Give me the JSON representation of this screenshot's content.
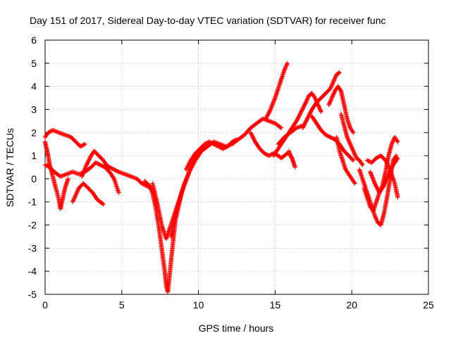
{
  "chart_data": {
    "type": "scatter",
    "title": "Day 151 of 2017, Sidereal Day-to-day VTEC variation (SDTVAR) for receiver func",
    "xlabel": "GPS time / hours",
    "ylabel": "SDTVAR / TECUs",
    "xlim": [
      0,
      25
    ],
    "ylim": [
      -5,
      6
    ],
    "x_ticks": [
      0,
      5,
      10,
      15,
      20,
      25
    ],
    "y_ticks": [
      -5,
      -4,
      -3,
      -2,
      -1,
      0,
      1,
      2,
      3,
      4,
      5,
      6
    ],
    "grid": true,
    "legend": "none",
    "marker": "plus",
    "color": "#ff0000",
    "series": [
      {
        "x": [
          0,
          0.2,
          0.5,
          0.9,
          1.3,
          1.7,
          2.0,
          2.3,
          2.6
        ],
        "y": [
          1.8,
          2.0,
          2.1,
          2.0,
          1.9,
          1.8,
          1.6,
          1.4,
          1.5
        ]
      },
      {
        "x": [
          0,
          0.3,
          0.6,
          1.0,
          1.4,
          1.8,
          2.2,
          2.6,
          3.0,
          3.3,
          3.6,
          3.9,
          4.2,
          4.5,
          4.8
        ],
        "y": [
          0.6,
          0.5,
          0.3,
          0.1,
          0.2,
          0.3,
          0.2,
          0.3,
          0.5,
          0.7,
          0.6,
          0.5,
          0.3,
          0.0,
          -0.6
        ]
      },
      {
        "x": [
          0,
          0.1,
          0.2,
          0.3,
          0.5,
          0.7,
          0.9,
          1.0,
          1.1,
          1.3,
          1.5
        ],
        "y": [
          1.6,
          1.3,
          1.0,
          0.6,
          0.1,
          -0.4,
          -0.9,
          -1.3,
          -1.0,
          -0.4,
          0.0
        ]
      },
      {
        "x": [
          1.8,
          2.0,
          2.2,
          2.5,
          2.8,
          3.1,
          3.4,
          3.6,
          3.8
        ],
        "y": [
          -1.0,
          -0.7,
          -0.4,
          -0.2,
          -0.4,
          -0.6,
          -0.9,
          -1.0,
          -1.1
        ]
      },
      {
        "x": [
          2.4,
          2.7,
          3.0,
          3.2,
          3.5,
          3.8,
          4.0,
          4.2,
          4.5,
          4.8,
          5.2,
          5.6,
          6.0,
          6.3,
          6.6,
          6.9
        ],
        "y": [
          0.1,
          0.6,
          1.0,
          1.2,
          1.0,
          0.8,
          0.6,
          0.5,
          0.4,
          0.3,
          0.2,
          0.1,
          0.0,
          -0.2,
          -0.3,
          -0.4
        ]
      },
      {
        "x": [
          6.5,
          6.8,
          7.0,
          7.2,
          7.4,
          7.6,
          7.8,
          7.9,
          8.0,
          8.1,
          8.3,
          8.5,
          8.7,
          8.9
        ],
        "y": [
          -0.1,
          -0.3,
          -0.6,
          -1.2,
          -2.0,
          -3.0,
          -4.0,
          -4.6,
          -4.9,
          -4.3,
          -3.0,
          -1.8,
          -1.2,
          -0.6
        ]
      },
      {
        "x": [
          7.0,
          7.3,
          7.6,
          7.9,
          8.2,
          8.5,
          8.8,
          9.1,
          9.4,
          9.7,
          10.0
        ],
        "y": [
          -0.2,
          -1.0,
          -2.0,
          -2.6,
          -2.0,
          -1.4,
          -0.8,
          -0.2,
          0.3,
          0.8,
          1.2
        ]
      },
      {
        "x": [
          8.2,
          8.6,
          9.0,
          9.4,
          9.8,
          10.2,
          10.6,
          11.0,
          11.4,
          11.8,
          12.2,
          12.6,
          13.0,
          13.4,
          13.8,
          14.2,
          14.6,
          15.0,
          15.4
        ],
        "y": [
          -2.5,
          -1.3,
          -0.4,
          0.3,
          0.8,
          1.2,
          1.4,
          1.6,
          1.5,
          1.4,
          1.5,
          1.7,
          1.9,
          2.2,
          2.4,
          2.6,
          2.5,
          2.4,
          2.2
        ]
      },
      {
        "x": [
          9.2,
          9.5,
          9.8,
          10.1,
          10.4,
          10.7,
          11.0,
          11.3,
          11.6,
          11.9,
          12.2,
          12.5
        ],
        "y": [
          0.4,
          0.8,
          1.1,
          1.3,
          1.5,
          1.6,
          1.5,
          1.4,
          1.3,
          1.4,
          1.6,
          1.7
        ]
      },
      {
        "x": [
          13.4,
          13.7,
          14.0,
          14.3,
          14.6,
          14.9,
          15.2,
          15.4,
          15.6,
          15.8
        ],
        "y": [
          2.0,
          1.6,
          1.3,
          1.1,
          1.0,
          1.1,
          1.0,
          0.9,
          1.0,
          1.1
        ]
      },
      {
        "x": [
          14.4,
          14.7,
          15.0,
          15.2,
          15.4,
          15.6,
          15.8
        ],
        "y": [
          2.6,
          3.0,
          3.5,
          3.9,
          4.3,
          4.7,
          5.0
        ]
      },
      {
        "x": [
          14.9,
          15.2,
          15.5,
          15.8,
          16.1,
          16.4,
          16.7,
          17.0,
          17.2,
          17.4,
          17.6,
          17.8,
          18.0
        ],
        "y": [
          1.0,
          1.3,
          1.6,
          1.9,
          2.2,
          2.5,
          2.9,
          3.3,
          3.6,
          3.7,
          3.5,
          3.2,
          2.9
        ]
      },
      {
        "x": [
          15.2,
          15.6,
          16.0,
          16.4,
          16.8
        ],
        "y": [
          1.5,
          1.8,
          2.0,
          2.2,
          2.3
        ]
      },
      {
        "x": [
          15.9,
          16.0,
          16.1,
          16.2,
          16.3
        ],
        "y": [
          1.2,
          1.0,
          0.9,
          0.7,
          0.5
        ]
      },
      {
        "x": [
          16.8,
          17.1,
          17.4,
          17.7,
          18.0,
          18.3,
          18.6,
          18.8,
          19.0,
          19.2
        ],
        "y": [
          2.2,
          2.6,
          3.0,
          3.3,
          3.5,
          3.7,
          3.9,
          4.2,
          4.5,
          4.6
        ]
      },
      {
        "x": [
          17.4,
          17.7,
          18.0,
          18.3,
          18.6,
          18.9,
          19.2,
          19.5,
          19.8,
          20.1
        ],
        "y": [
          2.7,
          2.4,
          2.1,
          1.9,
          1.8,
          1.7,
          1.5,
          1.2,
          1.0,
          0.8
        ]
      },
      {
        "x": [
          18.5,
          18.7,
          18.9,
          19.1,
          19.3,
          19.5,
          19.7,
          19.9,
          20.1
        ],
        "y": [
          3.2,
          3.5,
          3.8,
          4.0,
          3.8,
          3.2,
          2.6,
          2.2,
          2.0
        ]
      },
      {
        "x": [
          19.0,
          19.2,
          19.4,
          19.6,
          19.8,
          20.0,
          20.2
        ],
        "y": [
          1.8,
          1.2,
          0.8,
          0.4,
          0.2,
          0.0,
          -0.2
        ]
      },
      {
        "x": [
          19.3,
          19.5,
          19.7,
          19.9,
          20.1,
          20.3,
          20.5,
          20.7
        ],
        "y": [
          2.8,
          2.3,
          1.8,
          1.5,
          1.2,
          0.9,
          0.8,
          0.6
        ]
      },
      {
        "x": [
          20.5,
          20.7,
          20.9,
          21.1,
          21.3,
          21.5,
          21.7,
          21.9,
          22.1,
          22.3,
          22.5,
          22.7,
          22.9
        ],
        "y": [
          0.4,
          0.0,
          -0.4,
          -0.8,
          -1.2,
          -1.6,
          -1.9,
          -2.0,
          -1.5,
          -0.8,
          0.0,
          0.8,
          1.0
        ]
      },
      {
        "x": [
          20.8,
          21.0,
          21.2,
          21.4,
          21.6,
          21.8,
          22.0,
          22.2,
          22.4,
          22.6,
          22.8,
          23.0
        ],
        "y": [
          -0.4,
          -0.8,
          -1.2,
          -1.4,
          -1.0,
          -0.6,
          -0.3,
          0.3,
          1.0,
          1.5,
          1.8,
          1.6
        ]
      },
      {
        "x": [
          21.0,
          21.3,
          21.6,
          21.9,
          22.2,
          22.5,
          22.8,
          23.0
        ],
        "y": [
          0.8,
          0.7,
          0.9,
          1.0,
          0.8,
          0.4,
          -0.2,
          -0.8
        ]
      },
      {
        "x": [
          21.2,
          21.5,
          21.8,
          22.1,
          22.4,
          22.7,
          23.0
        ],
        "y": [
          0.3,
          -0.2,
          -0.6,
          -0.3,
          0.2,
          0.6,
          0.9
        ]
      }
    ]
  }
}
